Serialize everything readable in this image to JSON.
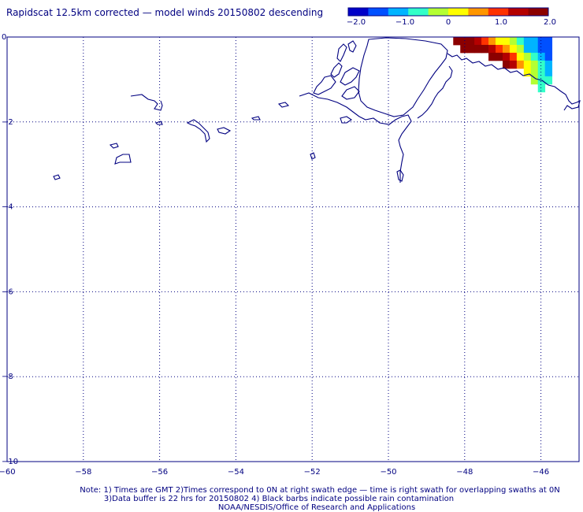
{
  "title": "Rapidscat 12.5km corrected — model winds 20150802 descending",
  "colorbar": {
    "ticks": [
      "−2.0",
      "−1.0",
      "0",
      "1.0",
      "2.0"
    ],
    "colors": [
      "#0000c8",
      "#0050ff",
      "#00b4ff",
      "#32ffc8",
      "#b4ff32",
      "#ffff00",
      "#ff9600",
      "#ff3200",
      "#b40000",
      "#8b0000"
    ]
  },
  "axes": {
    "x_ticks": [
      "−60",
      "−58",
      "−56",
      "−54",
      "−52",
      "−50",
      "−48",
      "−46"
    ],
    "y_ticks": [
      "0",
      "−2",
      "−4",
      "−6",
      "−8",
      "−10"
    ],
    "x_range": [
      -60,
      -45
    ],
    "y_range": [
      -10,
      0
    ],
    "grid": "dotted",
    "frame_color": "#000080"
  },
  "notes": [
    "Note: 1) Times are GMT 2)Times correspond to 0N at right swath edge — time is right swath for overlapping swaths at 0N",
    "3)Data buffer is 22 hrs for 20150802 4) Black barbs indicate possible rain contamination",
    "NOAA/NESDIS/Office of Research and Applications"
  ],
  "wind_diff_grid": {
    "lon_start": -48.3,
    "lat_start": 0.0,
    "cell_deg": 0.185,
    "rows": [
      [
        "#8b0000",
        "#8b0000",
        "#8b0000",
        "#b40000",
        "#ff3200",
        "#ff9600",
        "#ffff00",
        "#ffff00",
        "#b4ff32",
        "#32ffc8",
        "#00b4ff",
        "#00b4ff",
        "#0050ff",
        "#0050ff"
      ],
      [
        null,
        "#8b0000",
        "#8b0000",
        "#8b0000",
        "#8b0000",
        "#b40000",
        "#ff3200",
        "#ff9600",
        "#ffff00",
        "#b4ff32",
        "#00b4ff",
        "#00b4ff",
        "#0050ff",
        "#0050ff"
      ],
      [
        null,
        null,
        null,
        null,
        null,
        "#8b0000",
        "#8b0000",
        "#b40000",
        "#ff3200",
        "#ffff00",
        "#b4ff32",
        "#32ffc8",
        "#00b4ff",
        "#0050ff"
      ],
      [
        null,
        null,
        null,
        null,
        null,
        null,
        null,
        "#8b0000",
        "#b40000",
        "#ff9600",
        "#ffff00",
        "#b4ff32",
        "#32ffc8",
        "#00b4ff"
      ],
      [
        null,
        null,
        null,
        null,
        null,
        null,
        null,
        null,
        null,
        null,
        "#ffff00",
        "#b4ff32",
        "#32ffc8",
        "#00b4ff"
      ],
      [
        null,
        null,
        null,
        null,
        null,
        null,
        null,
        null,
        null,
        null,
        null,
        "#b4ff32",
        "#32ffc8",
        "#32ffc8"
      ],
      [
        null,
        null,
        null,
        null,
        null,
        null,
        null,
        null,
        null,
        null,
        null,
        null,
        "#32ffc8",
        null
      ]
    ]
  }
}
